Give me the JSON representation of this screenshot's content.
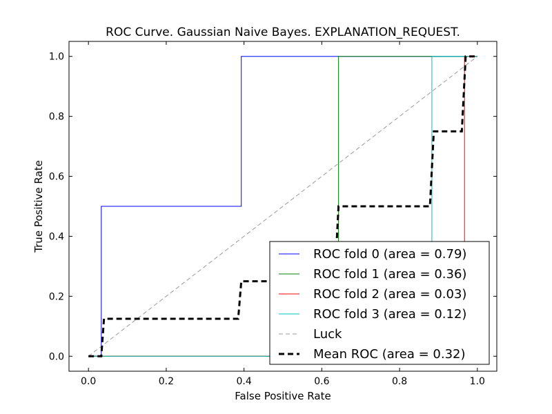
{
  "chart_data": {
    "type": "line",
    "title": "ROC Curve. Gaussian Naive Bayes. EXPLANATION_REQUEST.",
    "xlabel": "False Positive Rate",
    "ylabel": "True Positive Rate",
    "xlim": [
      -0.05,
      1.05
    ],
    "ylim": [
      -0.05,
      1.05
    ],
    "xticks": [
      0.0,
      0.2,
      0.4,
      0.6,
      0.8,
      1.0
    ],
    "yticks": [
      0.0,
      0.2,
      0.4,
      0.6,
      0.8,
      1.0
    ],
    "xtick_labels": [
      "0.0",
      "0.2",
      "0.4",
      "0.6",
      "0.8",
      "1.0"
    ],
    "ytick_labels": [
      "0.0",
      "0.2",
      "0.4",
      "0.6",
      "0.8",
      "1.0"
    ],
    "grid": false,
    "legend_position": "lower-right",
    "series": [
      {
        "name": "ROC fold 0 (area = 0.79)",
        "color": "#0000ff",
        "style": "solid",
        "x": [
          0.0,
          0.033,
          0.033,
          0.393,
          0.393,
          1.0
        ],
        "y": [
          0.0,
          0.0,
          0.5,
          0.5,
          1.0,
          1.0
        ]
      },
      {
        "name": "ROC fold 1 (area = 0.36)",
        "color": "#008000",
        "style": "solid",
        "x": [
          0.0,
          0.643,
          0.643,
          1.0
        ],
        "y": [
          0.0,
          0.0,
          1.0,
          1.0
        ]
      },
      {
        "name": "ROC fold 2 (area = 0.03)",
        "color": "#ff0000",
        "style": "solid",
        "x": [
          0.0,
          0.967,
          0.967,
          1.0
        ],
        "y": [
          0.0,
          0.0,
          1.0,
          1.0
        ]
      },
      {
        "name": "ROC fold 3 (area = 0.12)",
        "color": "#00bfbf",
        "style": "solid",
        "x": [
          0.0,
          0.883,
          0.883,
          1.0
        ],
        "y": [
          0.0,
          0.0,
          1.0,
          1.0
        ]
      },
      {
        "name": "Luck",
        "color": "#999999",
        "style": "dashed-thin",
        "x": [
          0.0,
          1.0
        ],
        "y": [
          0.0,
          1.0
        ]
      },
      {
        "name": "Mean ROC (area = 0.32)",
        "color": "#000000",
        "style": "dashed-thick",
        "x": [
          0.0,
          0.033,
          0.04,
          0.385,
          0.393,
          0.633,
          0.643,
          0.878,
          0.888,
          0.96,
          0.97,
          1.0
        ],
        "y": [
          0.0,
          0.0,
          0.125,
          0.125,
          0.25,
          0.25,
          0.5,
          0.5,
          0.75,
          0.75,
          1.0,
          1.0
        ]
      }
    ]
  }
}
